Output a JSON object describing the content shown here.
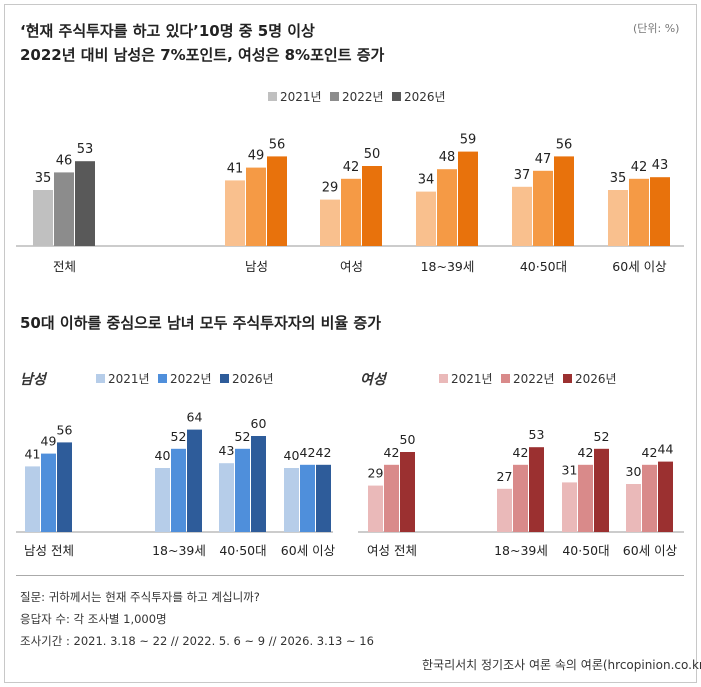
{
  "header": {
    "title_line1": "‘현재 주식투자를 하고 있다’10명 중 5명 이상",
    "title_line2": "2022년 대비 남성은 7%포인트, 여성은 8%포인트 증가",
    "unit": "(단위: %)"
  },
  "section2": {
    "title": "50대 이하를 중심으로 남녀 모두 주식투자자의 비율 증가"
  },
  "notes": {
    "question": "질문: 귀하께서는 현재 주식투자를 하고 계십니까?",
    "respondents": "응답자 수: 각 조사별 1,000명",
    "period": "조사기간 : 2021. 3.18 ~ 22 // 2022. 5. 6 ~ 9 // 2026. 3.13 ~ 16",
    "source": "한국리서치 정기조사 여론 속의 여론(hrcopinion.co.kr)"
  },
  "colors": {
    "total_2021": "#c0c0c0",
    "total_2022": "#8c8c8c",
    "total_2026": "#595959",
    "orange_2021": "#f9c08e",
    "orange_2022": "#f59a45",
    "orange_2026": "#e8720c",
    "blue_2021": "#b6cde9",
    "blue_2022": "#4f8fdb",
    "blue_2026": "#2e5c9a",
    "red_2021": "#eab9b9",
    "red_2022": "#d98a8a",
    "red_2026": "#9b3030"
  },
  "chart_data": [
    {
      "id": "overall",
      "type": "bar",
      "legend": [
        "2021년",
        "2022년",
        "2026년"
      ],
      "legend_placement": "top-center",
      "categories": [
        "전체",
        "남성",
        "여성",
        "18~39세",
        "40·50대",
        "60세 이상"
      ],
      "series": [
        {
          "name": "2021년",
          "values": [
            35,
            41,
            29,
            34,
            37,
            35
          ]
        },
        {
          "name": "2022년",
          "values": [
            46,
            49,
            42,
            48,
            47,
            42
          ]
        },
        {
          "name": "2026년",
          "values": [
            53,
            56,
            50,
            59,
            56,
            43
          ]
        }
      ],
      "ylim": [
        0,
        60
      ]
    },
    {
      "id": "male",
      "type": "bar",
      "panel_label": "남성",
      "legend": [
        "2021년",
        "2022년",
        "2026년"
      ],
      "legend_placement": "top-right",
      "categories": [
        "남성 전체",
        "18~39세",
        "40·50대",
        "60세 이상"
      ],
      "series": [
        {
          "name": "2021년",
          "values": [
            41,
            40,
            43,
            40
          ]
        },
        {
          "name": "2022년",
          "values": [
            49,
            52,
            52,
            42
          ]
        },
        {
          "name": "2026년",
          "values": [
            56,
            64,
            60,
            42
          ]
        }
      ],
      "ylim": [
        0,
        64
      ]
    },
    {
      "id": "female",
      "type": "bar",
      "panel_label": "여성",
      "legend": [
        "2021년",
        "2022년",
        "2026년"
      ],
      "legend_placement": "top-right",
      "categories": [
        "여성 전체",
        "18~39세",
        "40·50대",
        "60세 이상"
      ],
      "series": [
        {
          "name": "2021년",
          "values": [
            29,
            27,
            31,
            30
          ]
        },
        {
          "name": "2022년",
          "values": [
            42,
            42,
            42,
            42
          ]
        },
        {
          "name": "2026년",
          "values": [
            50,
            53,
            52,
            44
          ]
        }
      ],
      "ylim": [
        0,
        64
      ]
    }
  ]
}
